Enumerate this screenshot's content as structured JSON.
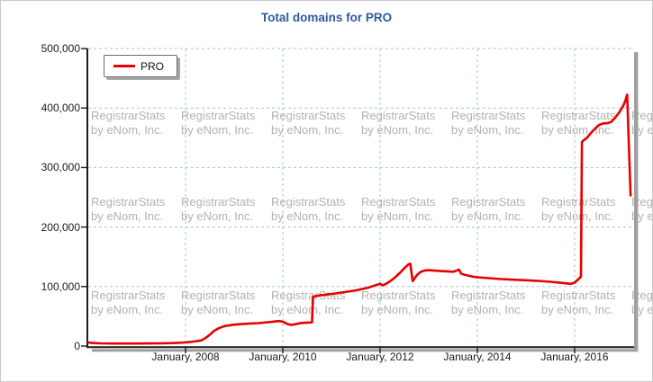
{
  "title": "Total domains for PRO",
  "legend": {
    "label": "PRO"
  },
  "watermark": {
    "line1": "RegistrarStats",
    "line2": "by eNom, Inc."
  },
  "colors": {
    "title_blue": "#2e59a3",
    "series_red": "#e60000",
    "grid_blue": "#a7c4d6",
    "axis_black": "#1a1a1a",
    "shadow_gray": "#a0a0a0",
    "watermark_gray": "#b2b2b2",
    "frame_border": "#c9c9c9"
  },
  "chart_data": {
    "type": "line",
    "title": "Total domains for PRO",
    "xlabel": "",
    "ylabel": "",
    "xlim": [
      2006.0,
      2017.25
    ],
    "ylim": [
      0,
      500000
    ],
    "grid": true,
    "legend_position": "top-left",
    "y_ticks": [
      {
        "v": 0,
        "label": "0"
      },
      {
        "v": 100000,
        "label": "100,000"
      },
      {
        "v": 200000,
        "label": "200,000"
      },
      {
        "v": 300000,
        "label": "300,000"
      },
      {
        "v": 400000,
        "label": "400,000"
      },
      {
        "v": 500000,
        "label": "500,000"
      }
    ],
    "x_ticks": [
      {
        "t": 2008,
        "label": "January, 2008"
      },
      {
        "t": 2010,
        "label": "January, 2010"
      },
      {
        "t": 2012,
        "label": "January, 2012"
      },
      {
        "t": 2014,
        "label": "January, 2014"
      },
      {
        "t": 2016,
        "label": "January, 2016"
      }
    ],
    "series": [
      {
        "name": "PRO",
        "color": "#e60000",
        "points": [
          [
            2006.0,
            6000
          ],
          [
            2006.08,
            5200
          ],
          [
            2006.25,
            4600
          ],
          [
            2006.5,
            4300
          ],
          [
            2006.75,
            4200
          ],
          [
            2007.0,
            4300
          ],
          [
            2007.25,
            4400
          ],
          [
            2007.5,
            4600
          ],
          [
            2007.75,
            5000
          ],
          [
            2008.0,
            6000
          ],
          [
            2008.17,
            7500
          ],
          [
            2008.33,
            9500
          ],
          [
            2008.42,
            14000
          ],
          [
            2008.5,
            19000
          ],
          [
            2008.58,
            25000
          ],
          [
            2008.67,
            29500
          ],
          [
            2008.75,
            32000
          ],
          [
            2008.83,
            34000
          ],
          [
            2008.92,
            35000
          ],
          [
            2009.0,
            36000
          ],
          [
            2009.25,
            37500
          ],
          [
            2009.5,
            38500
          ],
          [
            2009.75,
            40500
          ],
          [
            2009.92,
            42000
          ],
          [
            2010.0,
            41000
          ],
          [
            2010.08,
            37500
          ],
          [
            2010.17,
            35500
          ],
          [
            2010.25,
            36500
          ],
          [
            2010.33,
            38000
          ],
          [
            2010.42,
            39000
          ],
          [
            2010.5,
            39500
          ],
          [
            2010.6,
            39700
          ],
          [
            2010.62,
            83000
          ],
          [
            2010.75,
            85000
          ],
          [
            2011.0,
            87500
          ],
          [
            2011.25,
            90500
          ],
          [
            2011.5,
            93500
          ],
          [
            2011.75,
            98000
          ],
          [
            2011.92,
            102500
          ],
          [
            2012.0,
            104500
          ],
          [
            2012.06,
            102000
          ],
          [
            2012.17,
            107000
          ],
          [
            2012.25,
            111500
          ],
          [
            2012.33,
            117000
          ],
          [
            2012.42,
            124000
          ],
          [
            2012.5,
            131000
          ],
          [
            2012.58,
            137000
          ],
          [
            2012.62,
            138500
          ],
          [
            2012.67,
            109000
          ],
          [
            2012.75,
            118500
          ],
          [
            2012.83,
            124500
          ],
          [
            2012.92,
            127000
          ],
          [
            2013.0,
            127500
          ],
          [
            2013.25,
            126000
          ],
          [
            2013.5,
            125000
          ],
          [
            2013.58,
            127000
          ],
          [
            2013.62,
            128500
          ],
          [
            2013.67,
            121500
          ],
          [
            2013.75,
            119500
          ],
          [
            2013.83,
            118000
          ],
          [
            2013.92,
            116500
          ],
          [
            2014.0,
            115500
          ],
          [
            2014.25,
            114000
          ],
          [
            2014.5,
            112500
          ],
          [
            2014.75,
            111500
          ],
          [
            2015.0,
            110500
          ],
          [
            2015.25,
            109500
          ],
          [
            2015.5,
            108000
          ],
          [
            2015.75,
            106000
          ],
          [
            2015.92,
            104500
          ],
          [
            2016.0,
            106500
          ],
          [
            2016.08,
            112500
          ],
          [
            2016.13,
            116500
          ],
          [
            2016.15,
            343000
          ],
          [
            2016.21,
            347500
          ],
          [
            2016.25,
            349500
          ],
          [
            2016.33,
            357500
          ],
          [
            2016.42,
            365500
          ],
          [
            2016.5,
            371500
          ],
          [
            2016.58,
            374000
          ],
          [
            2016.67,
            374500
          ],
          [
            2016.75,
            376500
          ],
          [
            2016.83,
            383500
          ],
          [
            2016.92,
            393000
          ],
          [
            2017.0,
            404000
          ],
          [
            2017.04,
            412000
          ],
          [
            2017.08,
            422500
          ],
          [
            2017.15,
            253000
          ]
        ]
      }
    ]
  }
}
